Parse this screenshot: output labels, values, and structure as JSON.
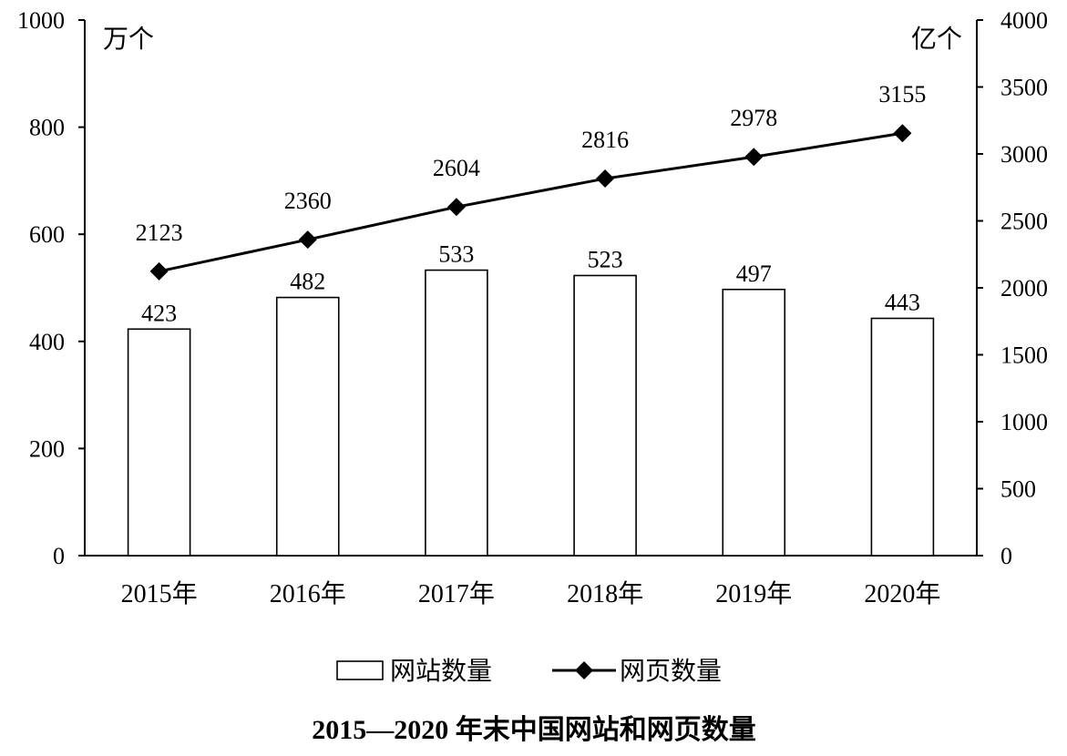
{
  "chart_data": {
    "type": "bar+line",
    "title": "2015—2020 年末中国网站和网页数量",
    "categories": [
      "2015年",
      "2016年",
      "2017年",
      "2018年",
      "2019年",
      "2020年"
    ],
    "series": [
      {
        "name": "网站数量",
        "type": "bar",
        "axis": "left",
        "values": [
          423,
          482,
          533,
          523,
          497,
          443
        ],
        "data_labels": [
          "423",
          "482",
          "533",
          "523",
          "497",
          "443"
        ]
      },
      {
        "name": "网页数量",
        "type": "line",
        "axis": "right",
        "marker": "diamond",
        "values": [
          2123,
          2360,
          2604,
          2816,
          2978,
          3155
        ],
        "data_labels": [
          "2123",
          "2360",
          "2604",
          "2816",
          "2978",
          "3155"
        ]
      }
    ],
    "y_left": {
      "unit_label": "万个",
      "ylim": [
        0,
        1000
      ],
      "ticks": [
        0,
        200,
        400,
        600,
        800,
        1000
      ],
      "tick_labels": [
        "0",
        "200",
        "400",
        "600",
        "800",
        "1000"
      ]
    },
    "y_right": {
      "unit_label": "亿个",
      "ylim": [
        0,
        4000
      ],
      "ticks": [
        0,
        500,
        1000,
        1500,
        2000,
        2500,
        3000,
        3500,
        4000
      ],
      "tick_labels": [
        "0",
        "500",
        "1000",
        "1500",
        "2000",
        "2500",
        "3000",
        "3500",
        "4000"
      ]
    },
    "grid": false,
    "legend_position": "bottom"
  }
}
